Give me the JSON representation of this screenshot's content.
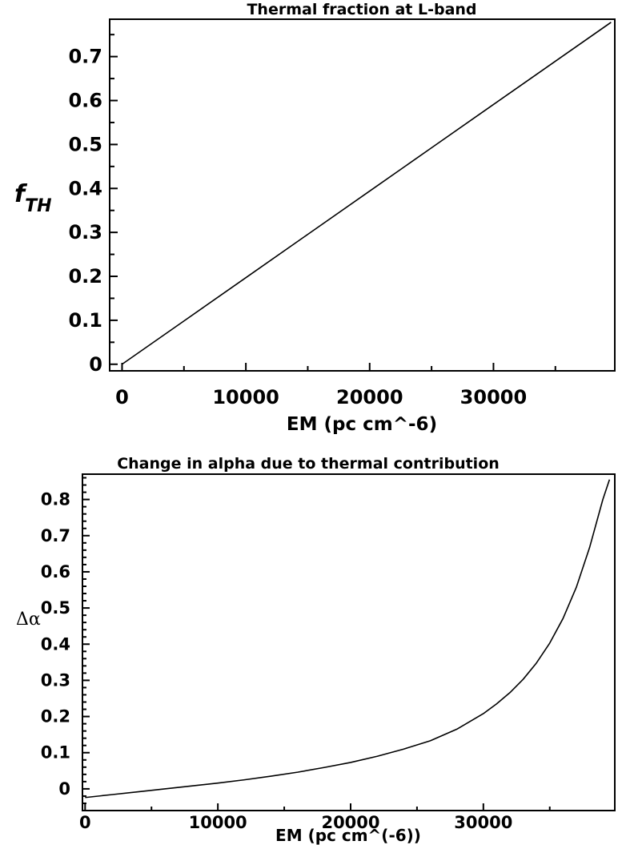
{
  "chart_data": [
    {
      "type": "line",
      "title": "Thermal fraction at L-band",
      "xlabel": "EM (pc cm^-6)",
      "ylabel_main": "f",
      "ylabel_sub": "TH",
      "xlim": [
        -1000,
        39800
      ],
      "ylim": [
        -0.015,
        0.785
      ],
      "xticks": [
        0,
        10000,
        20000,
        30000
      ],
      "xtick_labels": [
        "0",
        "10000",
        "20000",
        "30000"
      ],
      "yticks": [
        0,
        0.1,
        0.2,
        0.3,
        0.4,
        0.5,
        0.6,
        0.7
      ],
      "ytick_labels": [
        "0",
        "0.1",
        "0.2",
        "0.3",
        "0.4",
        "0.5",
        "0.6",
        "0.7"
      ],
      "grid": false,
      "series": [
        {
          "x": [
            0,
            5000,
            10000,
            15000,
            20000,
            25000,
            30000,
            35000,
            39500
          ],
          "y": [
            0,
            0.0985,
            0.197,
            0.2955,
            0.394,
            0.4925,
            0.591,
            0.6895,
            0.778
          ]
        }
      ]
    },
    {
      "type": "line",
      "title": "Change in alpha due to thermal contribution",
      "xlabel": "EM (pc cm^(-6))",
      "ylabel": "Δα",
      "xlim": [
        -200,
        39900
      ],
      "ylim": [
        -0.06,
        0.87
      ],
      "xticks": [
        0,
        10000,
        20000,
        30000
      ],
      "xtick_labels": [
        "0",
        "10000",
        "20000",
        "30000"
      ],
      "yticks": [
        0,
        0.1,
        0.2,
        0.3,
        0.4,
        0.5,
        0.6,
        0.7,
        0.8
      ],
      "ytick_labels": [
        "0",
        "0.1",
        "0.2",
        "0.3",
        "0.4",
        "0.5",
        "0.6",
        "0.7",
        "0.8"
      ],
      "grid": false,
      "series": [
        {
          "x": [
            0,
            2000,
            4000,
            6000,
            8000,
            10000,
            12000,
            14000,
            16000,
            18000,
            20000,
            22000,
            24000,
            26000,
            28000,
            30000,
            31000,
            32000,
            33000,
            34000,
            35000,
            36000,
            37000,
            38000,
            39000,
            39500
          ],
          "y": [
            -0.024,
            -0.016,
            -0.008,
            0.0,
            0.008,
            0.016,
            0.025,
            0.035,
            0.046,
            0.059,
            0.073,
            0.09,
            0.11,
            0.133,
            0.165,
            0.208,
            0.235,
            0.266,
            0.303,
            0.348,
            0.403,
            0.471,
            0.557,
            0.667,
            0.8,
            0.855
          ]
        }
      ]
    }
  ]
}
